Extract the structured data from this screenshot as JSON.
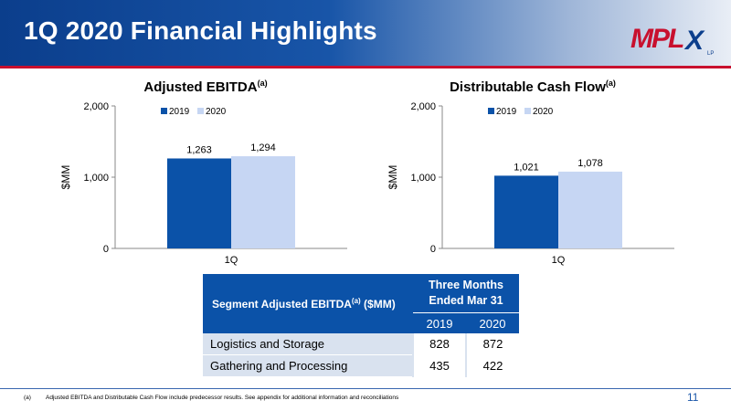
{
  "header": {
    "title": "1Q 2020 Financial Highlights",
    "logo_text": "MPLX"
  },
  "charts": [
    {
      "title": "Adjusted EBITDA",
      "title_sup": "(a)",
      "chart_data": {
        "type": "bar",
        "categories": [
          "1Q"
        ],
        "series": [
          {
            "name": "2019",
            "values": [
              1263
            ],
            "labels": [
              "1,263"
            ],
            "color": "#0b52a8"
          },
          {
            "name": "2020",
            "values": [
              1294
            ],
            "labels": [
              "1,294"
            ],
            "color": "#c6d6f3"
          }
        ],
        "ylabel": "$MM",
        "ylim": [
          0,
          2000
        ],
        "yticks": [
          0,
          1000,
          2000
        ],
        "ytick_labels": [
          "0",
          "1,000",
          "2,000"
        ],
        "legend": "top-left"
      }
    },
    {
      "title": "Distributable Cash Flow",
      "title_sup": "(a)",
      "chart_data": {
        "type": "bar",
        "categories": [
          "1Q"
        ],
        "series": [
          {
            "name": "2019",
            "values": [
              1021
            ],
            "labels": [
              "1,021"
            ],
            "color": "#0b52a8"
          },
          {
            "name": "2020",
            "values": [
              1078
            ],
            "labels": [
              "1,078"
            ],
            "color": "#c6d6f3"
          }
        ],
        "ylabel": "$MM",
        "ylim": [
          0,
          2000
        ],
        "yticks": [
          0,
          1000,
          2000
        ],
        "ytick_labels": [
          "0",
          "1,000",
          "2,000"
        ],
        "legend": "top-left"
      }
    }
  ],
  "segment_table": {
    "label": "Segment Adjusted EBITDA",
    "label_sup": "(a)",
    "label_unit": "($MM)",
    "period_line1": "Three Months",
    "period_line2": "Ended Mar 31",
    "years": [
      "2019",
      "2020"
    ],
    "rows": [
      {
        "name": "Logistics and Storage",
        "v2019": "828",
        "v2020": "872"
      },
      {
        "name": "Gathering and Processing",
        "v2019": "435",
        "v2020": "422"
      }
    ]
  },
  "footnote": {
    "marker": "(a)",
    "text": "Adjusted EBITDA and Distributable Cash Flow include predecessor results. See appendix for additional information and reconciliations"
  },
  "page_number": "11",
  "colors": {
    "accent_blue": "#0b52a8",
    "light_blue": "#c6d6f3",
    "red": "#c8102e"
  }
}
